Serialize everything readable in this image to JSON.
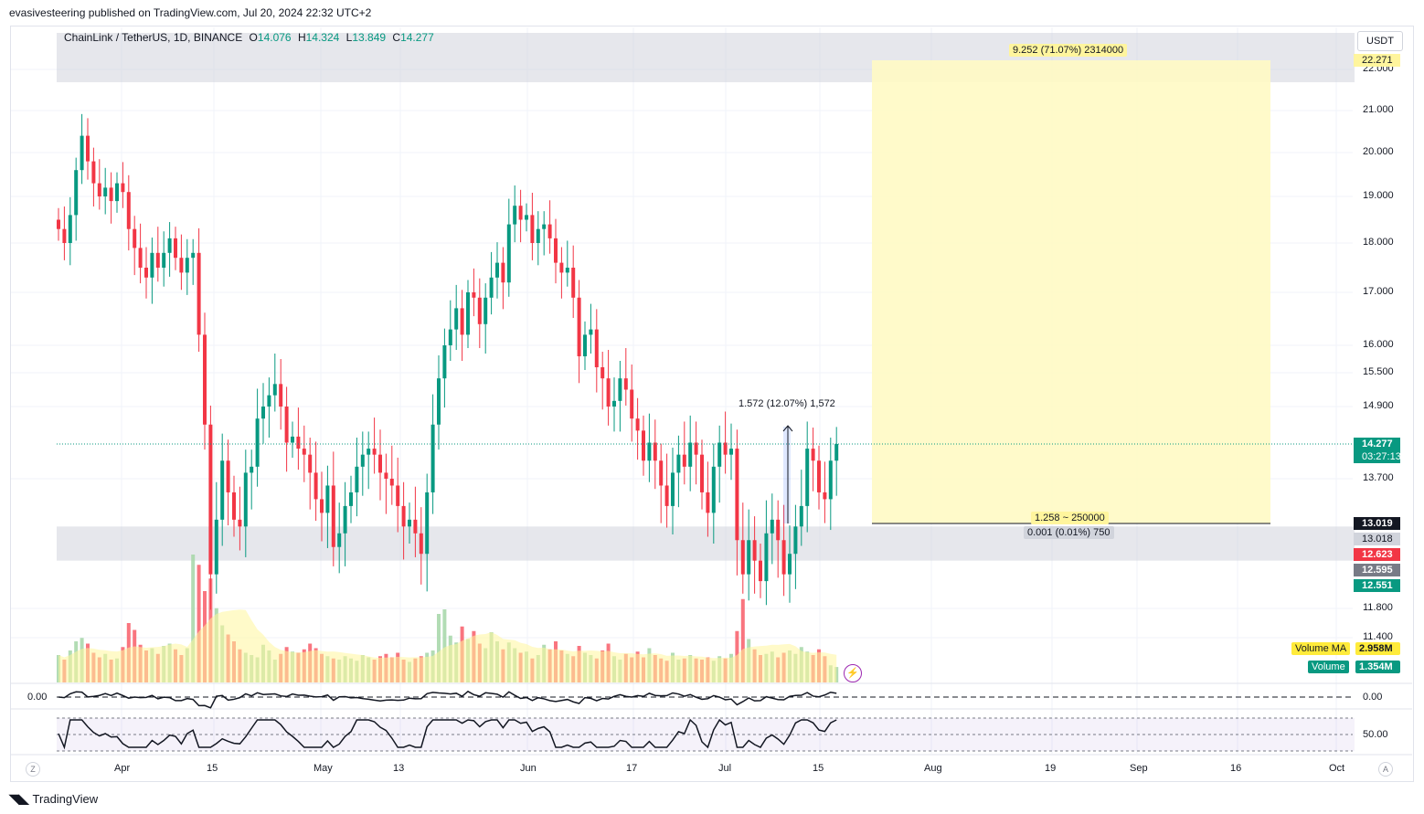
{
  "header": {
    "publisher_line": "evasivesteering published on TradingView.com, Jul 20, 2024 22:32 UTC+2"
  },
  "legend": {
    "symbol": "ChainLink / TetherUS, 1D, BINANCE",
    "o_label": "O",
    "o_value": "14.076",
    "h_label": "H",
    "h_value": "14.324",
    "l_label": "L",
    "l_value": "13.849",
    "c_label": "C",
    "c_value": "14.277"
  },
  "currency": "USDT",
  "annotations": {
    "target": "9.252 (71.07%) 2314000",
    "entry_top": "1.258 ~ 250000",
    "entry_bottom": "0.001 (0.01%) 750",
    "measure": "1.572 (12.07%) 1,572"
  },
  "price_tags": {
    "target": "22.271",
    "last": "14.277",
    "countdown": "03:27:13",
    "entry": "13.019",
    "stop": "13.018",
    "red": "12.623",
    "gray": "12.595",
    "green": "12.551"
  },
  "volume_labels": {
    "ma_label": "Volume MA",
    "ma_value": "2.958M",
    "vol_label": "Volume",
    "vol_value": "1.354M"
  },
  "osc1": {
    "left_label": "0.00",
    "right_label": "0.00"
  },
  "osc2": {
    "right_label": "50.00"
  },
  "footer": {
    "brand": "TradingView",
    "z_btn": "Z",
    "a_btn": "A"
  },
  "colors": {
    "up": "#089981",
    "down": "#f23645",
    "zone": "#d1d4dc",
    "target_box": "#fff9c4",
    "rsi_band": "#7e57c2"
  },
  "chart_data": {
    "type": "candlestick",
    "title": "ChainLink / TetherUS, 1D, BINANCE",
    "ylabel": "USDT",
    "y_ticks": [
      22.0,
      21.0,
      20.0,
      19.0,
      18.0,
      17.0,
      16.0,
      15.5,
      14.9,
      13.7,
      11.8,
      11.4
    ],
    "y_tick_labels": [
      "22.000",
      "21.000",
      "20.000",
      "19.000",
      "18.000",
      "17.000",
      "16.000",
      "15.500",
      "14.900",
      "13.700",
      "11.800",
      "11.400"
    ],
    "x_ticks": [
      "Apr",
      "15",
      "May",
      "13",
      "Jun",
      "17",
      "Jul",
      "15",
      "Aug",
      "19",
      "Sep",
      "16",
      "Oct"
    ],
    "zones": [
      {
        "name": "resistance",
        "low": 21.7,
        "high": 22.8
      },
      {
        "name": "support",
        "low": 12.5,
        "high": 13.0
      }
    ],
    "closes": [
      18.3,
      18.0,
      18.6,
      19.6,
      20.4,
      19.8,
      19.3,
      19.0,
      19.2,
      18.9,
      19.3,
      19.1,
      18.3,
      17.9,
      17.5,
      17.3,
      17.8,
      17.5,
      17.8,
      18.1,
      17.7,
      17.4,
      17.7,
      17.8,
      16.2,
      14.6,
      12.3,
      13.1,
      14.0,
      13.5,
      13.1,
      13.0,
      13.8,
      13.9,
      14.7,
      14.9,
      15.1,
      15.3,
      14.9,
      14.3,
      14.4,
      14.2,
      14.1,
      13.8,
      13.4,
      13.2,
      13.6,
      12.7,
      12.9,
      13.3,
      13.5,
      13.9,
      14.1,
      14.2,
      14.1,
      13.8,
      13.7,
      13.6,
      13.3,
      13.0,
      13.1,
      12.9,
      12.6,
      13.5,
      14.6,
      15.4,
      16.0,
      16.3,
      16.7,
      16.2,
      17.0,
      16.9,
      16.4,
      16.9,
      17.3,
      17.6,
      17.2,
      18.4,
      18.8,
      18.5,
      18.6,
      18.0,
      18.3,
      18.4,
      18.1,
      17.6,
      17.4,
      17.5,
      16.9,
      15.8,
      16.2,
      16.3,
      15.6,
      15.4,
      14.9,
      15.0,
      15.4,
      15.2,
      14.7,
      14.5,
      14.0,
      14.3,
      14.0,
      13.6,
      13.3,
      13.8,
      14.1,
      13.9,
      14.3,
      14.1,
      13.5,
      13.2,
      13.9,
      14.3,
      14.1,
      14.2,
      12.8,
      12.3,
      12.8,
      12.5,
      12.2,
      12.9,
      13.1,
      12.8,
      12.3,
      12.6,
      13.0,
      13.3,
      14.2,
      14.0,
      13.5,
      13.4,
      14.0,
      14.277
    ],
    "volumes": [
      2.4,
      2.0,
      2.8,
      3.6,
      3.9,
      3.4,
      2.6,
      2.2,
      2.5,
      2.0,
      2.1,
      3.1,
      5.2,
      4.6,
      3.3,
      2.8,
      3.0,
      2.5,
      3.2,
      3.4,
      2.9,
      2.4,
      3.0,
      11.2,
      10.3,
      8.0,
      9.1,
      6.5,
      5.0,
      4.2,
      3.6,
      2.9,
      2.6,
      2.4,
      2.2,
      3.3,
      2.8,
      2.0,
      2.5,
      3.1,
      2.7,
      2.6,
      2.9,
      3.4,
      3.0,
      2.5,
      2.3,
      2.1,
      2.0,
      2.3,
      2.1,
      1.9,
      2.4,
      2.2,
      2.0,
      2.3,
      2.5,
      2.2,
      2.6,
      2.0,
      1.8,
      2.1,
      2.3,
      2.6,
      2.8,
      6.0,
      6.4,
      4.1,
      3.5,
      4.9,
      3.8,
      4.5,
      3.4,
      3.0,
      4.4,
      3.6,
      2.9,
      3.5,
      3.0,
      2.6,
      2.7,
      2.1,
      2.4,
      3.3,
      2.9,
      3.6,
      2.8,
      2.5,
      2.3,
      3.2,
      2.6,
      2.4,
      2.1,
      2.8,
      3.4,
      2.3,
      2.0,
      2.5,
      2.2,
      2.7,
      2.2,
      3.0,
      2.4,
      2.1,
      1.9,
      2.6,
      2.0,
      2.1,
      2.4,
      2.1,
      2.0,
      2.2,
      1.9,
      2.3,
      2.1,
      2.5,
      4.5,
      7.3,
      3.8,
      2.9,
      2.4,
      2.5,
      2.7,
      2.2,
      2.6,
      2.8,
      2.5,
      3.1,
      2.7,
      2.4,
      2.9,
      2.3,
      1.5,
      1.354
    ]
  }
}
